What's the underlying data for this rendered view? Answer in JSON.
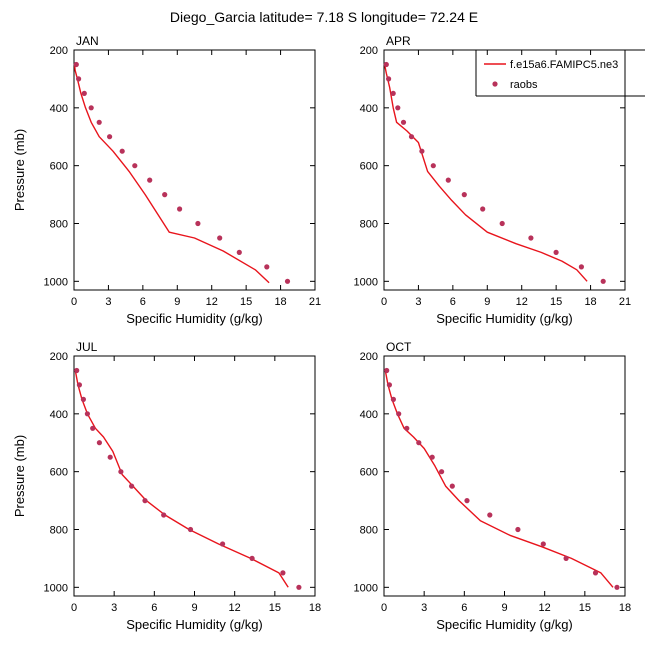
{
  "title": "Diego_Garcia  latitude= 7.18 S longitude= 72.24 E",
  "legend": {
    "model_label": "f.e15a6.FAMIPC5.ne3",
    "obs_label": "raobs",
    "placement": "top-right"
  },
  "colors": {
    "model_line": "#e8141c",
    "obs_marker": "#b8325a",
    "axis": "#000000"
  },
  "chart_data": [
    {
      "type": "line",
      "panel": "JAN",
      "xlabel": "Specific Humidity (g/kg)",
      "ylabel": "Pressure (mb)",
      "xlim": [
        0,
        21
      ],
      "ylim": [
        200,
        1030
      ],
      "y_inverted": true,
      "xticks": [
        0,
        3,
        6,
        9,
        12,
        15,
        18,
        21
      ],
      "yticks": [
        200,
        400,
        600,
        800,
        1000
      ],
      "series": [
        {
          "name": "f.e15a6.FAMIPC5.ne3",
          "kind": "line",
          "x": [
            0.05,
            0.1,
            0.3,
            0.6,
            1.0,
            1.5,
            2.2,
            3.4,
            4.8,
            6.2,
            8.3,
            10.5,
            13.0,
            15.8,
            17.0
          ],
          "y": [
            250,
            270,
            300,
            350,
            400,
            450,
            500,
            550,
            620,
            700,
            830,
            850,
            895,
            960,
            1005
          ]
        },
        {
          "name": "raobs",
          "kind": "scatter",
          "x": [
            0.2,
            0.4,
            0.9,
            1.5,
            2.2,
            3.1,
            4.2,
            5.3,
            6.6,
            7.9,
            9.2,
            10.8,
            12.7,
            14.4,
            16.8,
            18.6
          ],
          "y": [
            250,
            300,
            350,
            400,
            450,
            500,
            550,
            600,
            650,
            700,
            750,
            800,
            850,
            900,
            950,
            1000
          ]
        }
      ]
    },
    {
      "type": "line",
      "panel": "APR",
      "xlabel": "Specific Humidity (g/kg)",
      "ylabel": "",
      "xlim": [
        0,
        21
      ],
      "ylim": [
        200,
        1030
      ],
      "y_inverted": true,
      "xticks": [
        0,
        3,
        6,
        9,
        12,
        15,
        18,
        21
      ],
      "yticks": [
        200,
        400,
        600,
        800,
        1000
      ],
      "series": [
        {
          "name": "f.e15a6.FAMIPC5.ne3",
          "kind": "line",
          "x": [
            0.05,
            0.2,
            0.5,
            0.8,
            1.1,
            2.0,
            3.0,
            3.8,
            4.8,
            5.9,
            7.1,
            9.0,
            11.5,
            13.7,
            15.5,
            16.8,
            17.7
          ],
          "y": [
            250,
            280,
            330,
            400,
            450,
            480,
            520,
            620,
            670,
            720,
            770,
            830,
            870,
            900,
            930,
            960,
            1000
          ]
        },
        {
          "name": "raobs",
          "kind": "scatter",
          "x": [
            0.2,
            0.4,
            0.8,
            1.2,
            1.7,
            2.4,
            3.3,
            4.3,
            5.6,
            7.0,
            8.6,
            10.3,
            12.8,
            15.0,
            17.2,
            19.1
          ],
          "y": [
            250,
            300,
            350,
            400,
            450,
            500,
            550,
            600,
            650,
            700,
            750,
            800,
            850,
            900,
            950,
            1000
          ]
        }
      ]
    },
    {
      "type": "line",
      "panel": "JUL",
      "xlabel": "Specific Humidity (g/kg)",
      "ylabel": "Pressure (mb)",
      "xlim": [
        0,
        18
      ],
      "ylim": [
        200,
        1030
      ],
      "y_inverted": true,
      "xticks": [
        0,
        3,
        6,
        9,
        12,
        15,
        18
      ],
      "yticks": [
        200,
        400,
        600,
        800,
        1000
      ],
      "series": [
        {
          "name": "f.e15a6.FAMIPC5.ne3",
          "kind": "line",
          "x": [
            0.1,
            0.3,
            0.6,
            1.0,
            1.6,
            2.2,
            2.9,
            3.6,
            4.4,
            5.4,
            6.8,
            8.6,
            10.8,
            13.2,
            15.3,
            16.0
          ],
          "y": [
            250,
            300,
            350,
            400,
            450,
            480,
            530,
            610,
            650,
            700,
            750,
            800,
            850,
            900,
            950,
            1000
          ]
        },
        {
          "name": "raobs",
          "kind": "scatter",
          "x": [
            0.2,
            0.4,
            0.7,
            1.0,
            1.4,
            1.9,
            2.7,
            3.5,
            4.3,
            5.3,
            6.7,
            8.7,
            11.1,
            13.3,
            15.6,
            16.8
          ],
          "y": [
            250,
            300,
            350,
            400,
            450,
            500,
            550,
            600,
            650,
            700,
            750,
            800,
            850,
            900,
            950,
            1000
          ]
        }
      ]
    },
    {
      "type": "line",
      "panel": "OCT",
      "xlabel": "Specific Humidity (g/kg)",
      "ylabel": "",
      "xlim": [
        0,
        18
      ],
      "ylim": [
        200,
        1030
      ],
      "y_inverted": true,
      "xticks": [
        0,
        3,
        6,
        9,
        12,
        15,
        18
      ],
      "yticks": [
        200,
        400,
        600,
        800,
        1000
      ],
      "series": [
        {
          "name": "f.e15a6.FAMIPC5.ne3",
          "kind": "line",
          "x": [
            0.1,
            0.3,
            0.6,
            1.0,
            1.5,
            2.2,
            3.0,
            3.8,
            4.6,
            5.6,
            7.2,
            9.4,
            11.8,
            14.0,
            16.2,
            17.1
          ],
          "y": [
            250,
            300,
            350,
            400,
            450,
            480,
            520,
            580,
            650,
            700,
            770,
            820,
            860,
            900,
            950,
            1000
          ]
        },
        {
          "name": "raobs",
          "kind": "scatter",
          "x": [
            0.2,
            0.4,
            0.7,
            1.1,
            1.7,
            2.6,
            3.6,
            4.3,
            5.1,
            6.2,
            7.9,
            10.0,
            11.9,
            13.6,
            15.8,
            17.4
          ],
          "y": [
            250,
            300,
            350,
            400,
            450,
            500,
            550,
            600,
            650,
            700,
            750,
            800,
            850,
            900,
            950,
            1000
          ]
        }
      ]
    }
  ]
}
